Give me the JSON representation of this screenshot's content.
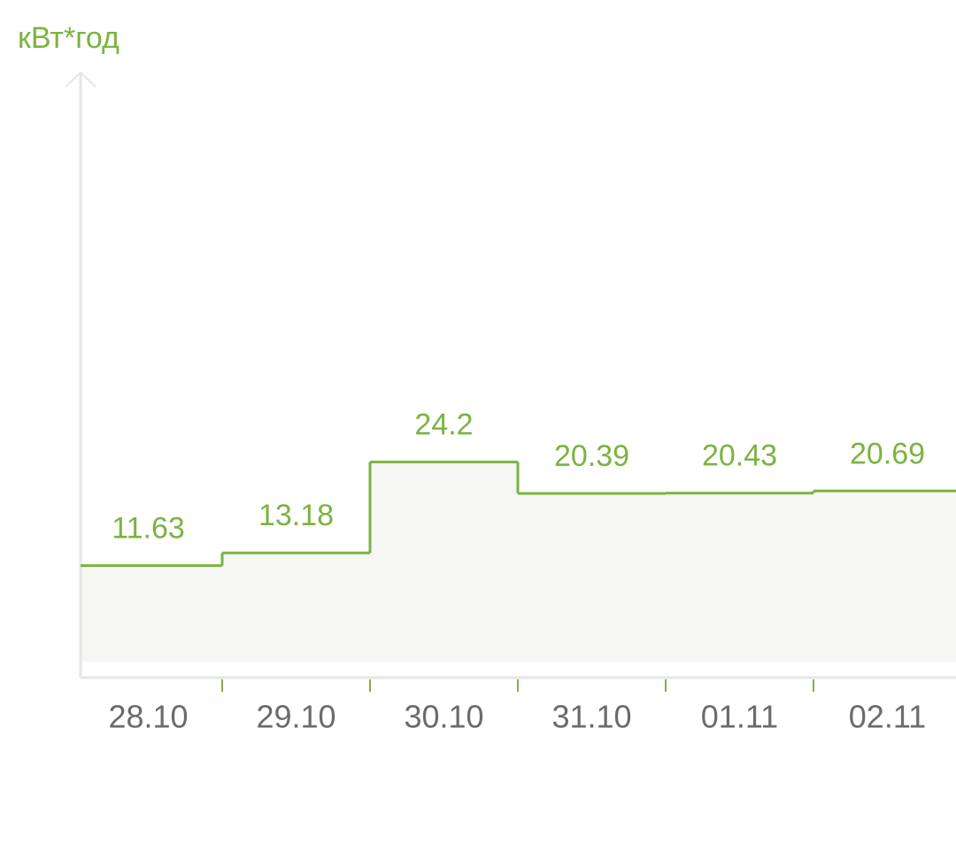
{
  "chart_data": {
    "type": "step",
    "y_label": "кВт*год",
    "categories": [
      "28.10",
      "29.10",
      "30.10",
      "31.10",
      "01.11",
      "02.11"
    ],
    "values": [
      11.63,
      13.18,
      24.2,
      20.39,
      20.43,
      20.69
    ],
    "color": "#7cb342",
    "ylim": [
      0,
      70
    ]
  }
}
